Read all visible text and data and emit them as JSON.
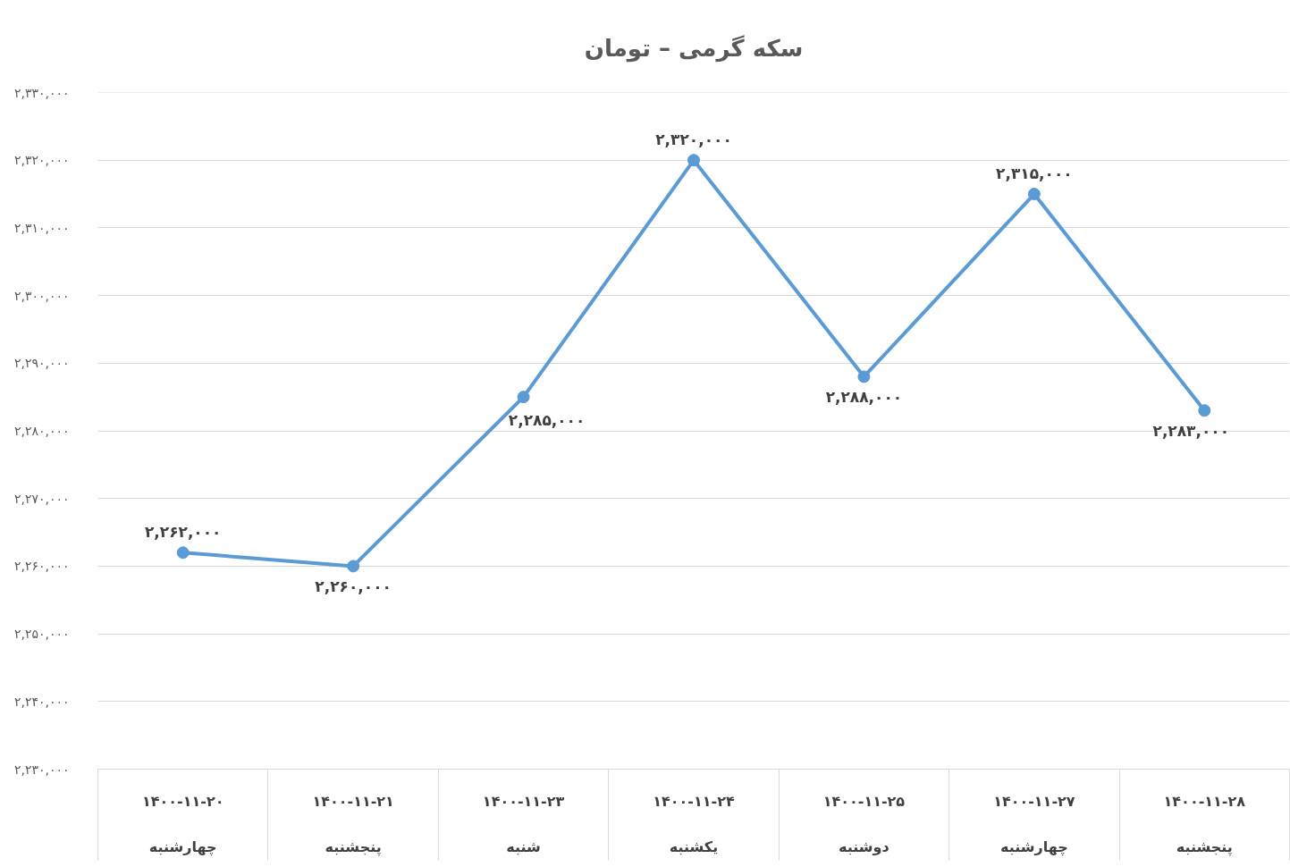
{
  "chart_data": {
    "type": "line",
    "title": "سکه گرمی – تومان",
    "categories": [
      "۱۴۰۰-۱۱-۲۰\nچهارشنبه",
      "۱۴۰۰-۱۱-۲۱\nپنجشنبه",
      "۱۴۰۰-۱۱-۲۳\nشنبه",
      "۱۴۰۰-۱۱-۲۴\nیکشنبه",
      "۱۴۰۰-۱۱-۲۵\nدوشنبه",
      "۱۴۰۰-۱۱-۲۷\nچهارشنبه",
      "۱۴۰۰-۱۱-۲۸\nپنجشنبه"
    ],
    "color": "#5b9bd5",
    "values": [
      2262000,
      2260000,
      2285000,
      2320000,
      2288000,
      2315000,
      2283000
    ],
    "value_labels": [
      "۲,۲۶۲,۰۰۰",
      "۲,۲۶۰,۰۰۰",
      "۲,۲۸۵,۰۰۰",
      "۲,۳۲۰,۰۰۰",
      "۲,۲۸۸,۰۰۰",
      "۲,۳۱۵,۰۰۰",
      "۲,۲۸۳,۰۰۰"
    ],
    "ylim": [
      2230000,
      2330000
    ],
    "yticks": [
      {
        "value": 2230000,
        "label": "۲,۲۳۰,۰۰۰"
      },
      {
        "value": 2240000,
        "label": "۲,۲۴۰,۰۰۰"
      },
      {
        "value": 2250000,
        "label": "۲,۲۵۰,۰۰۰"
      },
      {
        "value": 2260000,
        "label": "۲,۲۶۰,۰۰۰"
      },
      {
        "value": 2270000,
        "label": "۲,۲۷۰,۰۰۰"
      },
      {
        "value": 2280000,
        "label": "۲,۲۸۰,۰۰۰"
      },
      {
        "value": 2290000,
        "label": "۲,۲۹۰,۰۰۰"
      },
      {
        "value": 2300000,
        "label": "۲,۳۰۰,۰۰۰"
      },
      {
        "value": 2310000,
        "label": "۲,۳۱۰,۰۰۰"
      },
      {
        "value": 2320000,
        "label": "۲,۳۲۰,۰۰۰"
      },
      {
        "value": 2330000,
        "label": "۲,۳۳۰,۰۰۰"
      }
    ],
    "grid": "y",
    "marker": "circle",
    "line_style": "solid"
  }
}
